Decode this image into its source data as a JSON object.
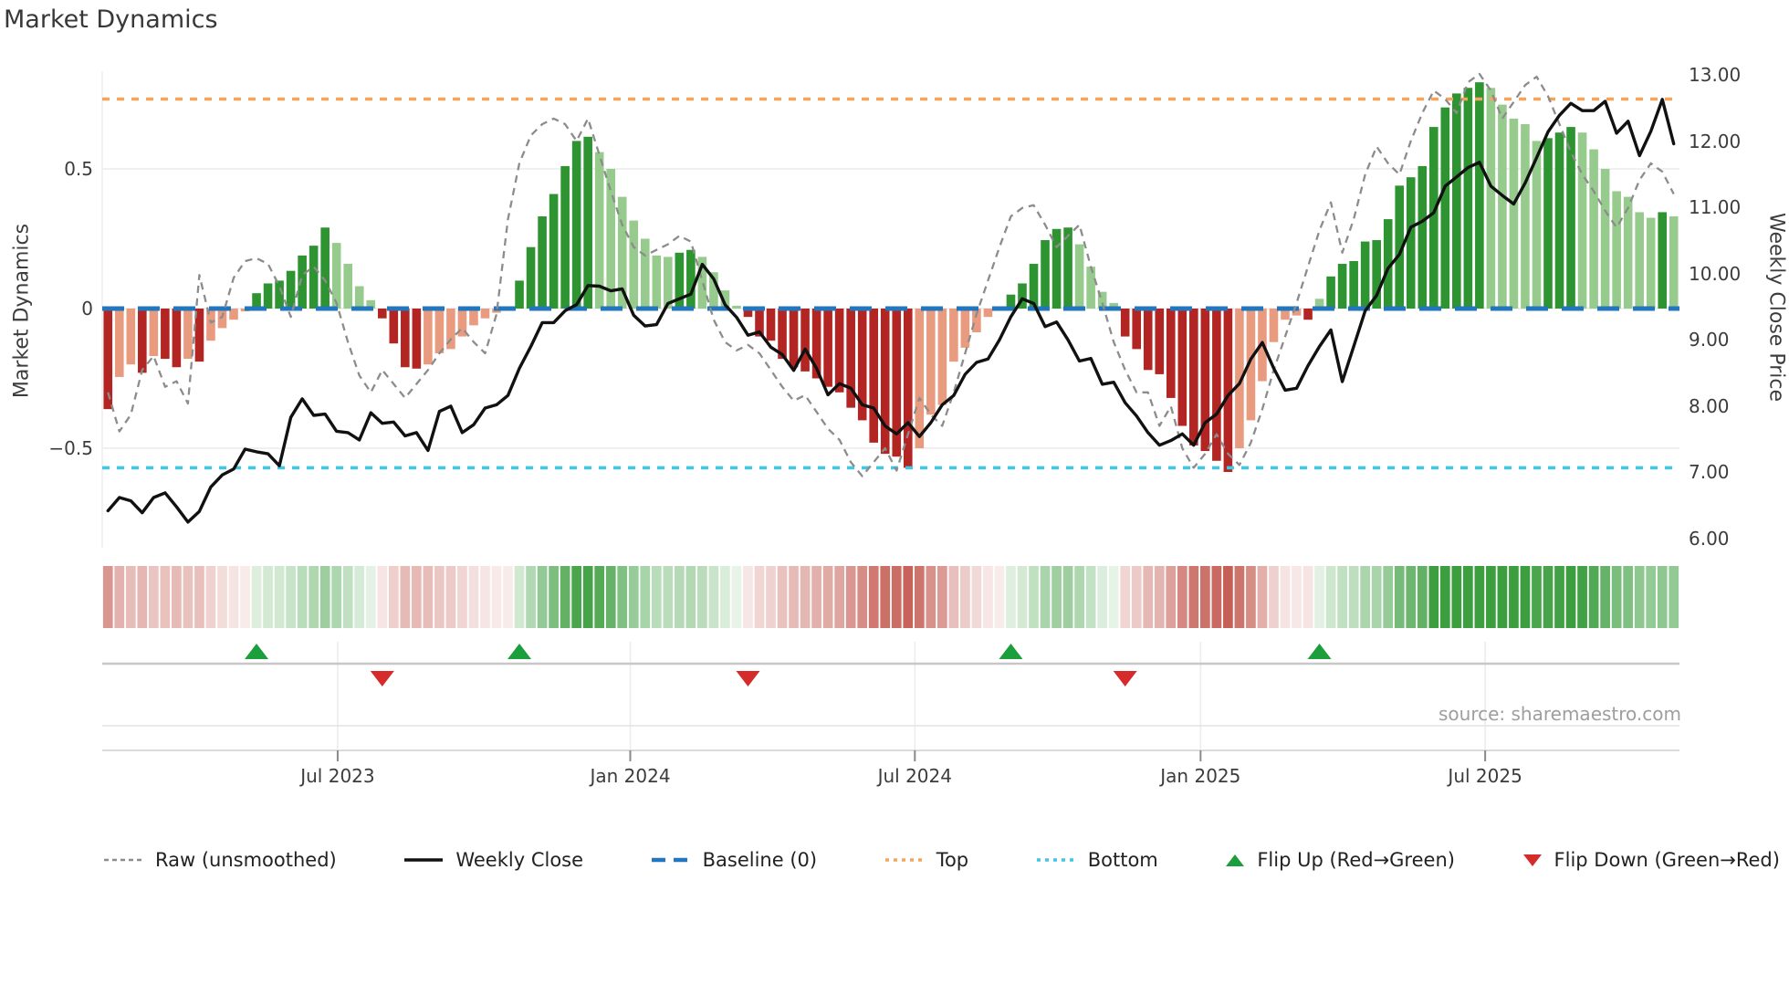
{
  "title": "Market Dynamics",
  "source": "source: sharemaestro.com",
  "legend": {
    "raw": "Raw (unsmoothed)",
    "close": "Weekly Close",
    "baseline": "Baseline (0)",
    "top": "Top",
    "bottom": "Bottom",
    "flip_up": "Flip Up (Red→Green)",
    "flip_down": "Flip Down (Green→Red)"
  },
  "colors": {
    "dark_green": "#2e9331",
    "light_green": "#97cb8e",
    "dark_red": "#b22522",
    "light_red": "#e99b80",
    "baseline_blue": "#2176bd",
    "top_orange": "#f4a55c",
    "bottom_cyan": "#41c7e5",
    "close_black": "#111111",
    "raw_gray": "#8c8c8c",
    "flip_up_green": "#1d9e3c",
    "flip_down_red": "#d62b2b",
    "heat_green": "#3d9e40",
    "heat_red": "#c05046",
    "grid": "#ebebeb"
  },
  "chart_data": {
    "type": "combo",
    "title": "Market Dynamics",
    "weeks": 138,
    "left_axis": {
      "label": "Market Dynamics",
      "ticks": [
        "0.5",
        "0",
        "−0.5"
      ],
      "tick_values": [
        0.5,
        0,
        -0.5
      ]
    },
    "right_axis": {
      "label": "Weekly Close Price",
      "ticks": [
        "13.00",
        "12.00",
        "11.00",
        "10.00",
        "9.00",
        "8.00",
        "7.00",
        "6.00"
      ],
      "tick_values": [
        13,
        12,
        11,
        10,
        9,
        8,
        7,
        6
      ]
    },
    "x_axis": {
      "ticks": [
        {
          "label": "Jul 2023",
          "pos": 20.6
        },
        {
          "label": "Jan 2024",
          "pos": 46.2
        },
        {
          "label": "Jul 2024",
          "pos": 71.1
        },
        {
          "label": "Jan 2025",
          "pos": 96.1
        },
        {
          "label": "Jul 2025",
          "pos": 121.0
        }
      ]
    },
    "bands": {
      "baseline": 0,
      "top": 0.75,
      "bottom": -0.57
    },
    "oscillator": [
      -0.36,
      -0.245,
      -0.2,
      -0.23,
      -0.17,
      -0.18,
      -0.21,
      -0.18,
      -0.19,
      -0.115,
      -0.07,
      -0.04,
      -0.01,
      0.055,
      0.09,
      0.1,
      0.135,
      0.19,
      0.225,
      0.29,
      0.235,
      0.16,
      0.08,
      0.03,
      -0.035,
      -0.125,
      -0.21,
      -0.215,
      -0.2,
      -0.16,
      -0.145,
      -0.1,
      -0.06,
      -0.035,
      -0.015,
      -0.005,
      0.1,
      0.22,
      0.33,
      0.41,
      0.51,
      0.6,
      0.615,
      0.56,
      0.5,
      0.4,
      0.315,
      0.25,
      0.19,
      0.185,
      0.2,
      0.21,
      0.185,
      0.13,
      0.065,
      0.01,
      -0.03,
      -0.1,
      -0.115,
      -0.18,
      -0.21,
      -0.225,
      -0.25,
      -0.28,
      -0.3,
      -0.355,
      -0.4,
      -0.48,
      -0.52,
      -0.53,
      -0.57,
      -0.5,
      -0.38,
      -0.345,
      -0.19,
      -0.14,
      -0.085,
      -0.03,
      -0.005,
      0.05,
      0.09,
      0.16,
      0.245,
      0.285,
      0.29,
      0.23,
      0.15,
      0.06,
      0.02,
      -0.1,
      -0.145,
      -0.22,
      -0.235,
      -0.32,
      -0.42,
      -0.49,
      -0.51,
      -0.545,
      -0.585,
      -0.5,
      -0.4,
      -0.26,
      -0.12,
      -0.04,
      -0.025,
      -0.04,
      0.035,
      0.115,
      0.16,
      0.17,
      0.24,
      0.245,
      0.32,
      0.44,
      0.47,
      0.51,
      0.65,
      0.72,
      0.77,
      0.79,
      0.81,
      0.79,
      0.73,
      0.68,
      0.66,
      0.6,
      0.61,
      0.63,
      0.65,
      0.63,
      0.57,
      0.5,
      0.42,
      0.4,
      0.345,
      0.325,
      0.345,
      0.33
    ],
    "raw": [
      -0.3,
      -0.44,
      -0.38,
      -0.22,
      -0.17,
      -0.28,
      -0.26,
      -0.34,
      0.12,
      -0.05,
      -0.03,
      0.11,
      0.17,
      0.18,
      0.16,
      0.08,
      -0.03,
      0.12,
      0.15,
      0.1,
      0.02,
      -0.12,
      -0.24,
      -0.3,
      -0.22,
      -0.27,
      -0.32,
      -0.27,
      -0.22,
      -0.16,
      -0.11,
      -0.07,
      -0.12,
      -0.16,
      -0.02,
      0.32,
      0.52,
      0.62,
      0.66,
      0.68,
      0.66,
      0.6,
      0.68,
      0.55,
      0.42,
      0.3,
      0.22,
      0.19,
      0.21,
      0.23,
      0.26,
      0.24,
      0.1,
      -0.04,
      -0.12,
      -0.15,
      -0.13,
      -0.16,
      -0.22,
      -0.28,
      -0.33,
      -0.31,
      -0.37,
      -0.43,
      -0.47,
      -0.55,
      -0.6,
      -0.55,
      -0.5,
      -0.58,
      -0.45,
      -0.32,
      -0.38,
      -0.42,
      -0.3,
      -0.16,
      -0.02,
      0.1,
      0.22,
      0.33,
      0.36,
      0.37,
      0.3,
      0.22,
      0.26,
      0.3,
      0.15,
      0.02,
      -0.12,
      -0.22,
      -0.3,
      -0.3,
      -0.42,
      -0.35,
      -0.5,
      -0.57,
      -0.52,
      -0.45,
      -0.52,
      -0.56,
      -0.48,
      -0.36,
      -0.22,
      -0.1,
      0.02,
      0.15,
      0.28,
      0.38,
      0.2,
      0.32,
      0.48,
      0.58,
      0.52,
      0.48,
      0.6,
      0.7,
      0.78,
      0.75,
      0.7,
      0.81,
      0.84,
      0.78,
      0.68,
      0.74,
      0.8,
      0.83,
      0.76,
      0.66,
      0.56,
      0.48,
      0.42,
      0.35,
      0.29,
      0.36,
      0.46,
      0.52,
      0.49,
      0.41
    ],
    "weekly_close": [
      6.42,
      6.62,
      6.57,
      6.39,
      6.62,
      6.69,
      6.48,
      6.25,
      6.41,
      6.78,
      6.96,
      7.05,
      7.35,
      7.31,
      7.28,
      7.1,
      7.83,
      8.11,
      7.86,
      7.88,
      7.62,
      7.6,
      7.49,
      7.9,
      7.74,
      7.76,
      7.55,
      7.6,
      7.33,
      7.92,
      8.0,
      7.6,
      7.72,
      7.97,
      8.02,
      8.16,
      8.57,
      8.9,
      9.26,
      9.26,
      9.44,
      9.53,
      9.82,
      9.81,
      9.74,
      9.77,
      9.37,
      9.21,
      9.23,
      9.55,
      9.62,
      9.69,
      10.14,
      9.92,
      9.53,
      9.34,
      9.07,
      9.12,
      8.89,
      8.78,
      8.54,
      8.86,
      8.57,
      8.17,
      8.34,
      8.27,
      8.02,
      7.97,
      7.7,
      7.58,
      7.75,
      7.54,
      7.75,
      8.02,
      8.16,
      8.48,
      8.66,
      8.71,
      9.0,
      9.35,
      9.62,
      9.55,
      9.2,
      9.27,
      9.0,
      8.68,
      8.72,
      8.33,
      8.36,
      8.05,
      7.85,
      7.6,
      7.41,
      7.48,
      7.58,
      7.41,
      7.75,
      7.88,
      8.16,
      8.34,
      8.71,
      8.96,
      8.57,
      8.24,
      8.27,
      8.61,
      8.9,
      9.15,
      8.37,
      8.9,
      9.44,
      9.67,
      10.08,
      10.29,
      10.7,
      10.79,
      10.92,
      11.32,
      11.46,
      11.6,
      11.68,
      11.32,
      11.18,
      11.05,
      11.37,
      11.75,
      12.14,
      12.39,
      12.57,
      12.46,
      12.46,
      12.6,
      12.12,
      12.3,
      11.78,
      12.15,
      12.63,
      11.96
    ],
    "flip_up_weeks": [
      13,
      36,
      79,
      106
    ],
    "flip_down_weeks": [
      24,
      56,
      89
    ]
  }
}
